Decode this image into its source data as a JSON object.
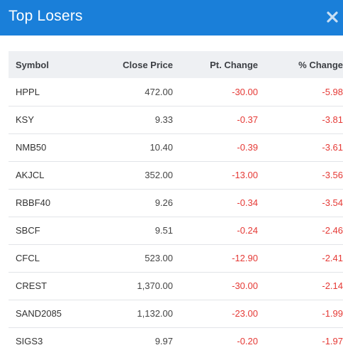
{
  "modal": {
    "title": "Top Losers",
    "close_icon": "close-icon"
  },
  "table": {
    "columns": {
      "symbol": "Symbol",
      "close_price": "Close Price",
      "pt_change": "Pt. Change",
      "pct_change": "% Change"
    },
    "rows": [
      {
        "symbol": "HPPL",
        "close_price": "472.00",
        "pt_change": "-30.00",
        "pct_change": "-5.98"
      },
      {
        "symbol": "KSY",
        "close_price": "9.33",
        "pt_change": "-0.37",
        "pct_change": "-3.81"
      },
      {
        "symbol": "NMB50",
        "close_price": "10.40",
        "pt_change": "-0.39",
        "pct_change": "-3.61"
      },
      {
        "symbol": "AKJCL",
        "close_price": "352.00",
        "pt_change": "-13.00",
        "pct_change": "-3.56"
      },
      {
        "symbol": "RBBF40",
        "close_price": "9.26",
        "pt_change": "-0.34",
        "pct_change": "-3.54"
      },
      {
        "symbol": "SBCF",
        "close_price": "9.51",
        "pt_change": "-0.24",
        "pct_change": "-2.46"
      },
      {
        "symbol": "CFCL",
        "close_price": "523.00",
        "pt_change": "-12.90",
        "pct_change": "-2.41"
      },
      {
        "symbol": "CREST",
        "close_price": "1,370.00",
        "pt_change": "-30.00",
        "pct_change": "-2.14"
      },
      {
        "symbol": "SAND2085",
        "close_price": "1,132.00",
        "pt_change": "-23.00",
        "pct_change": "-1.99"
      },
      {
        "symbol": "SIGS3",
        "close_price": "9.97",
        "pt_change": "-0.20",
        "pct_change": "-1.97"
      }
    ]
  },
  "colors": {
    "header_bg": "#1a7fd9",
    "negative": "#e53935",
    "table_header_bg": "#eef0f3"
  }
}
